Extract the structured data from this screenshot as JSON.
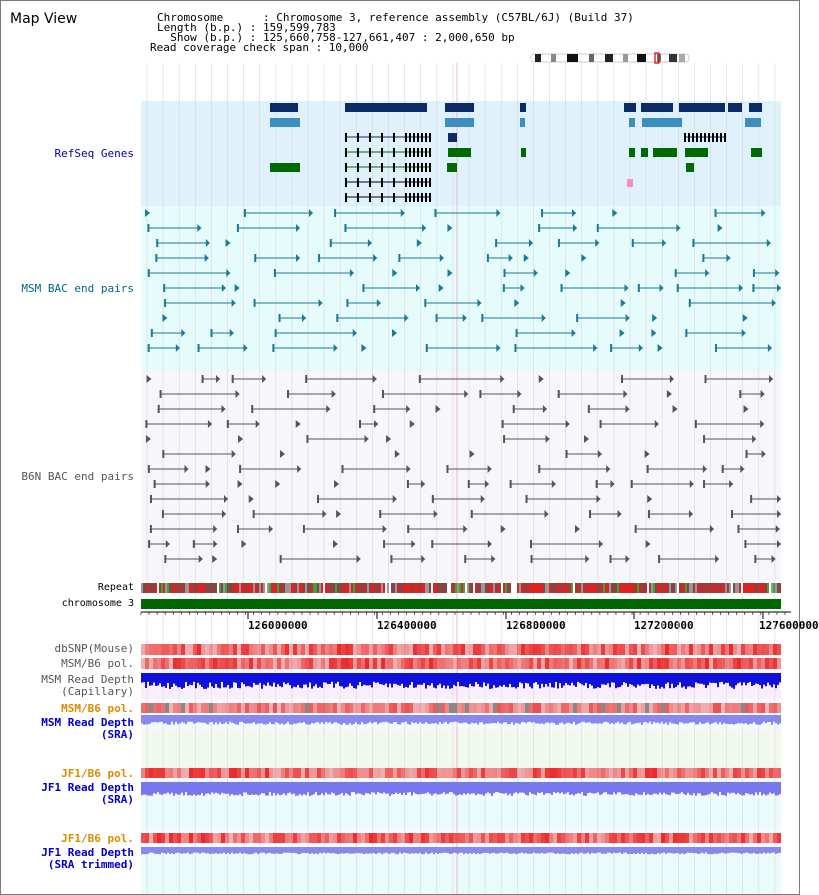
{
  "header": {
    "title": "Map View",
    "chromosome_line": "Chromosome      : Chromosome 3, reference assembly (C57BL/6J) (Build 37)",
    "length_line": "Length (b.p.) : 159,599,783",
    "show_line": "  Show (b.p.) : 125,660,758-127,661,407 : 2,000,650 bp",
    "coverage_line": "Read coverage check span : 10,000"
  },
  "tracks": {
    "refseq": "RefSeq Genes",
    "msm_bac": "MSM BAC end pairs",
    "b6n_bac": "B6N BAC end pairs",
    "repeat": "Repeat",
    "chromosome": "chromosome 3",
    "dbsnp": "dbSNP(Mouse)",
    "msm_b6_pol": "MSM/B6 pol.",
    "msm_depth_cap_1": "MSM Read Depth",
    "msm_depth_cap_2": "(Capillary)",
    "msm_b6_pol_2": "MSM/B6 pol.",
    "msm_depth_sra_1": "MSM Read Depth",
    "msm_depth_sra_2": "(SRA)",
    "jf1_b6_pol": "JF1/B6 pol.",
    "jf1_depth_sra_1": "JF1 Read Depth",
    "jf1_depth_sra_2": "(SRA)",
    "jf1_b6_pol_2": "JF1/B6 pol.",
    "jf1_depth_trim_1": "JF1 Read Depth",
    "jf1_depth_trim_2": "(SRA trimmed)"
  },
  "ruler": {
    "ticks": [
      "126000000",
      "126400000",
      "126800000",
      "127200000",
      "127600000"
    ]
  },
  "colors": {
    "refseq_bg": "#dff2fb",
    "msm_bg": "#e6fbfb",
    "b6n_bg": "#f7f7fb",
    "gene_dark": "#0b2a66",
    "gene_mid": "#3a8fbf",
    "gene_green": "#006a00",
    "msm_pair": "#1a7a99",
    "b6n_pair": "#555555",
    "chromosome_bar": "#006600",
    "depth_blue": "#1010dd",
    "depth_light": "#8888ee",
    "pol_red": "#ee3333"
  }
}
